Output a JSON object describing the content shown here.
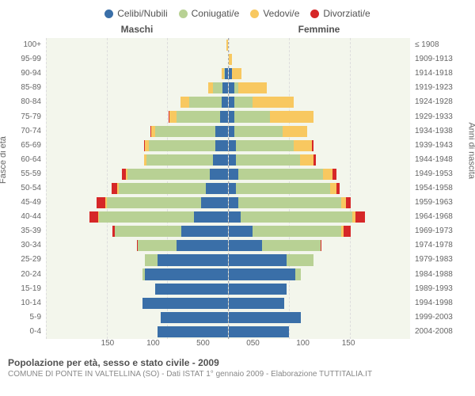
{
  "chart": {
    "type": "population-pyramid",
    "background_color": "#f3f6ec",
    "grid_color": "#dddddd",
    "text_color": "#666666",
    "xmax": 150,
    "xticks": [
      0,
      50,
      100,
      150
    ],
    "series": [
      {
        "key": "celibi",
        "label": "Celibi/Nubili",
        "color": "#3a6fa8"
      },
      {
        "key": "coniugati",
        "label": "Coniugati/e",
        "color": "#b8d194"
      },
      {
        "key": "vedovi",
        "label": "Vedovi/e",
        "color": "#f8c860"
      },
      {
        "key": "divorziati",
        "label": "Divorziati/e",
        "color": "#d62728"
      }
    ],
    "headers": {
      "male": "Maschi",
      "female": "Femmine"
    },
    "yaxis_left": "Fasce di età",
    "yaxis_right": "Anni di nascita",
    "rows": [
      {
        "age": "100+",
        "birth": "≤ 1908",
        "male": {
          "celibi": 0,
          "coniugati": 0,
          "vedovi": 1,
          "divorziati": 0
        },
        "female": {
          "celibi": 0,
          "coniugati": 0,
          "vedovi": 0,
          "divorziati": 0
        }
      },
      {
        "age": "95-99",
        "birth": "1909-1913",
        "male": {
          "celibi": 0,
          "coniugati": 0,
          "vedovi": 0,
          "divorziati": 0
        },
        "female": {
          "celibi": 0,
          "coniugati": 0,
          "vedovi": 3,
          "divorziati": 0
        }
      },
      {
        "age": "90-94",
        "birth": "1914-1918",
        "male": {
          "celibi": 2,
          "coniugati": 1,
          "vedovi": 2,
          "divorziati": 0
        },
        "female": {
          "celibi": 3,
          "coniugati": 0,
          "vedovi": 8,
          "divorziati": 0
        }
      },
      {
        "age": "85-89",
        "birth": "1919-1923",
        "male": {
          "celibi": 4,
          "coniugati": 8,
          "vedovi": 4,
          "divorziati": 0
        },
        "female": {
          "celibi": 5,
          "coniugati": 3,
          "vedovi": 24,
          "divorziati": 0
        }
      },
      {
        "age": "80-84",
        "birth": "1924-1928",
        "male": {
          "celibi": 5,
          "coniugati": 27,
          "vedovi": 7,
          "divorziati": 0
        },
        "female": {
          "celibi": 5,
          "coniugati": 15,
          "vedovi": 34,
          "divorziati": 0
        }
      },
      {
        "age": "75-79",
        "birth": "1929-1933",
        "male": {
          "celibi": 6,
          "coniugati": 36,
          "vedovi": 6,
          "divorziati": 1
        },
        "female": {
          "celibi": 5,
          "coniugati": 29,
          "vedovi": 36,
          "divorziati": 0
        }
      },
      {
        "age": "70-74",
        "birth": "1934-1938",
        "male": {
          "celibi": 10,
          "coniugati": 50,
          "vedovi": 3,
          "divorziati": 1
        },
        "female": {
          "celibi": 5,
          "coniugati": 40,
          "vedovi": 20,
          "divorziati": 0
        }
      },
      {
        "age": "65-69",
        "birth": "1939-1943",
        "male": {
          "celibi": 10,
          "coniugati": 55,
          "vedovi": 3,
          "divorziati": 1
        },
        "female": {
          "celibi": 6,
          "coniugati": 48,
          "vedovi": 15,
          "divorziati": 1
        }
      },
      {
        "age": "60-64",
        "birth": "1944-1948",
        "male": {
          "celibi": 12,
          "coniugati": 55,
          "vedovi": 2,
          "divorziati": 0
        },
        "female": {
          "celibi": 6,
          "coniugati": 53,
          "vedovi": 11,
          "divorziati": 2
        }
      },
      {
        "age": "55-59",
        "birth": "1949-1953",
        "male": {
          "celibi": 15,
          "coniugati": 68,
          "vedovi": 1,
          "divorziati": 3
        },
        "female": {
          "celibi": 8,
          "coniugati": 70,
          "vedovi": 8,
          "divorziati": 3
        }
      },
      {
        "age": "50-54",
        "birth": "1954-1958",
        "male": {
          "celibi": 18,
          "coniugati": 72,
          "vedovi": 1,
          "divorziati": 5
        },
        "female": {
          "celibi": 6,
          "coniugati": 78,
          "vedovi": 5,
          "divorziati": 3
        }
      },
      {
        "age": "45-49",
        "birth": "1959-1963",
        "male": {
          "celibi": 22,
          "coniugati": 78,
          "vedovi": 1,
          "divorziati": 7
        },
        "female": {
          "celibi": 8,
          "coniugati": 85,
          "vedovi": 4,
          "divorziati": 4
        }
      },
      {
        "age": "40-44",
        "birth": "1964-1968",
        "male": {
          "celibi": 28,
          "coniugati": 78,
          "vedovi": 1,
          "divorziati": 7
        },
        "female": {
          "celibi": 10,
          "coniugati": 92,
          "vedovi": 3,
          "divorziati": 8
        }
      },
      {
        "age": "35-39",
        "birth": "1969-1973",
        "male": {
          "celibi": 38,
          "coniugati": 55,
          "vedovi": 0,
          "divorziati": 2
        },
        "female": {
          "celibi": 20,
          "coniugati": 73,
          "vedovi": 2,
          "divorziati": 6
        }
      },
      {
        "age": "30-34",
        "birth": "1974-1978",
        "male": {
          "celibi": 42,
          "coniugati": 32,
          "vedovi": 0,
          "divorziati": 1
        },
        "female": {
          "celibi": 28,
          "coniugati": 48,
          "vedovi": 0,
          "divorziati": 1
        }
      },
      {
        "age": "25-29",
        "birth": "1979-1983",
        "male": {
          "celibi": 58,
          "coniugati": 10,
          "vedovi": 0,
          "divorziati": 0
        },
        "female": {
          "celibi": 48,
          "coniugati": 22,
          "vedovi": 0,
          "divorziati": 0
        }
      },
      {
        "age": "20-24",
        "birth": "1984-1988",
        "male": {
          "celibi": 68,
          "coniugati": 2,
          "vedovi": 0,
          "divorziati": 0
        },
        "female": {
          "celibi": 55,
          "coniugati": 5,
          "vedovi": 0,
          "divorziati": 0
        }
      },
      {
        "age": "15-19",
        "birth": "1989-1993",
        "male": {
          "celibi": 60,
          "coniugati": 0,
          "vedovi": 0,
          "divorziati": 0
        },
        "female": {
          "celibi": 48,
          "coniugati": 0,
          "vedovi": 0,
          "divorziati": 0
        }
      },
      {
        "age": "10-14",
        "birth": "1994-1998",
        "male": {
          "celibi": 70,
          "coniugati": 0,
          "vedovi": 0,
          "divorziati": 0
        },
        "female": {
          "celibi": 46,
          "coniugati": 0,
          "vedovi": 0,
          "divorziati": 0
        }
      },
      {
        "age": "5-9",
        "birth": "1999-2003",
        "male": {
          "celibi": 55,
          "coniugati": 0,
          "vedovi": 0,
          "divorziati": 0
        },
        "female": {
          "celibi": 60,
          "coniugati": 0,
          "vedovi": 0,
          "divorziati": 0
        }
      },
      {
        "age": "0-4",
        "birth": "2004-2008",
        "male": {
          "celibi": 58,
          "coniugati": 0,
          "vedovi": 0,
          "divorziati": 0
        },
        "female": {
          "celibi": 50,
          "coniugati": 0,
          "vedovi": 0,
          "divorziati": 0
        }
      }
    ]
  },
  "footer": {
    "title": "Popolazione per età, sesso e stato civile - 2009",
    "subtitle": "COMUNE DI PONTE IN VALTELLINA (SO) - Dati ISTAT 1° gennaio 2009 - Elaborazione TUTTITALIA.IT"
  }
}
